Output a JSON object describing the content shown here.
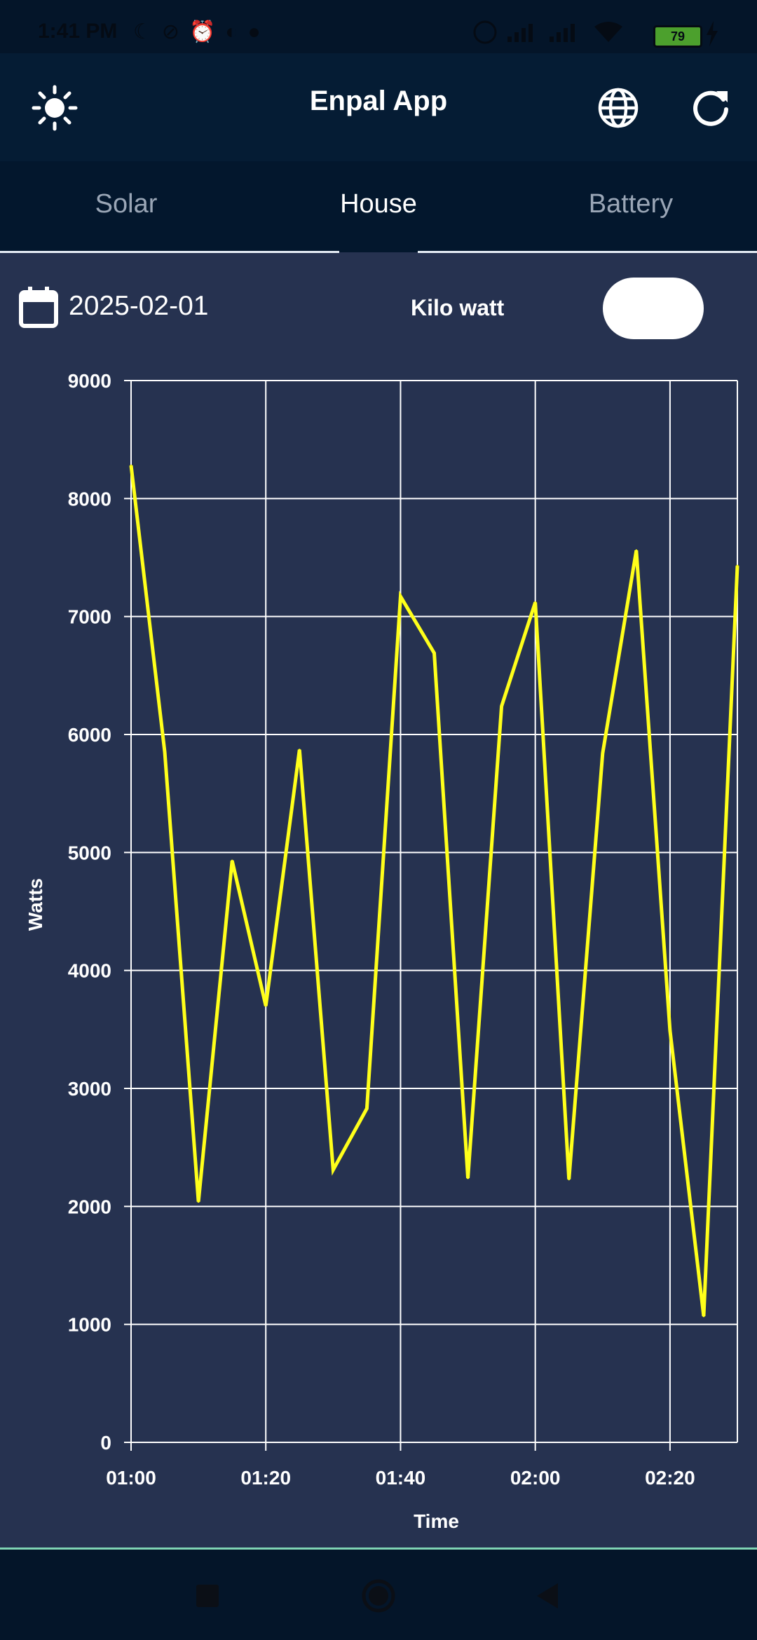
{
  "status_bar": {
    "time": "1:41 PM",
    "battery": "79",
    "left_icons": [
      "moon-icon",
      "mute-icon",
      "alarm-icon",
      "contrast-icon",
      "app-icon"
    ],
    "right_icons": [
      "registered-icon",
      "signal-icon",
      "signal-icon",
      "wifi-icon",
      "battery-icon",
      "charging-icon"
    ]
  },
  "app_bar": {
    "title": "Enpal App",
    "icons": [
      "brightness-icon",
      "globe-icon",
      "refresh-icon"
    ]
  },
  "tabs": [
    {
      "label": "Solar",
      "active": false
    },
    {
      "label": "House",
      "active": true
    },
    {
      "label": "Battery",
      "active": false
    }
  ],
  "controls": {
    "date": "2025-02-01",
    "unit_label": "Kilo watt",
    "unit_toggle_on": true
  },
  "colors": {
    "background": "#263250",
    "app_bar": "#051c34",
    "series": "#ffff1a",
    "grid": "#ffffff"
  },
  "chart_data": {
    "type": "line",
    "xlabel": "Time",
    "ylabel": "Watts",
    "ylim": [
      0,
      9000
    ],
    "yticks": [
      "0",
      "1000",
      "2000",
      "3000",
      "4000",
      "5000",
      "6000",
      "7000",
      "8000",
      "9000"
    ],
    "xticks": [
      "01:00",
      "01:20",
      "01:40",
      "02:00",
      "02:20"
    ],
    "grid": true,
    "x": [
      "01:00",
      "01:05",
      "01:10",
      "01:15",
      "01:20",
      "01:25",
      "01:30",
      "01:35",
      "01:40",
      "01:45",
      "01:50",
      "01:55",
      "02:00",
      "02:05",
      "02:10",
      "02:15",
      "02:20",
      "02:25",
      "02:30"
    ],
    "series": [
      {
        "values": [
          8280,
          5850,
          2040,
          4930,
          3700,
          5870,
          2310,
          2830,
          7170,
          6690,
          2240,
          6240,
          7120,
          2230,
          5840,
          7560,
          3490,
          1070,
          7430
        ]
      }
    ]
  },
  "nav_bar": {
    "icons": [
      "recents-icon",
      "home-icon",
      "back-icon"
    ]
  }
}
